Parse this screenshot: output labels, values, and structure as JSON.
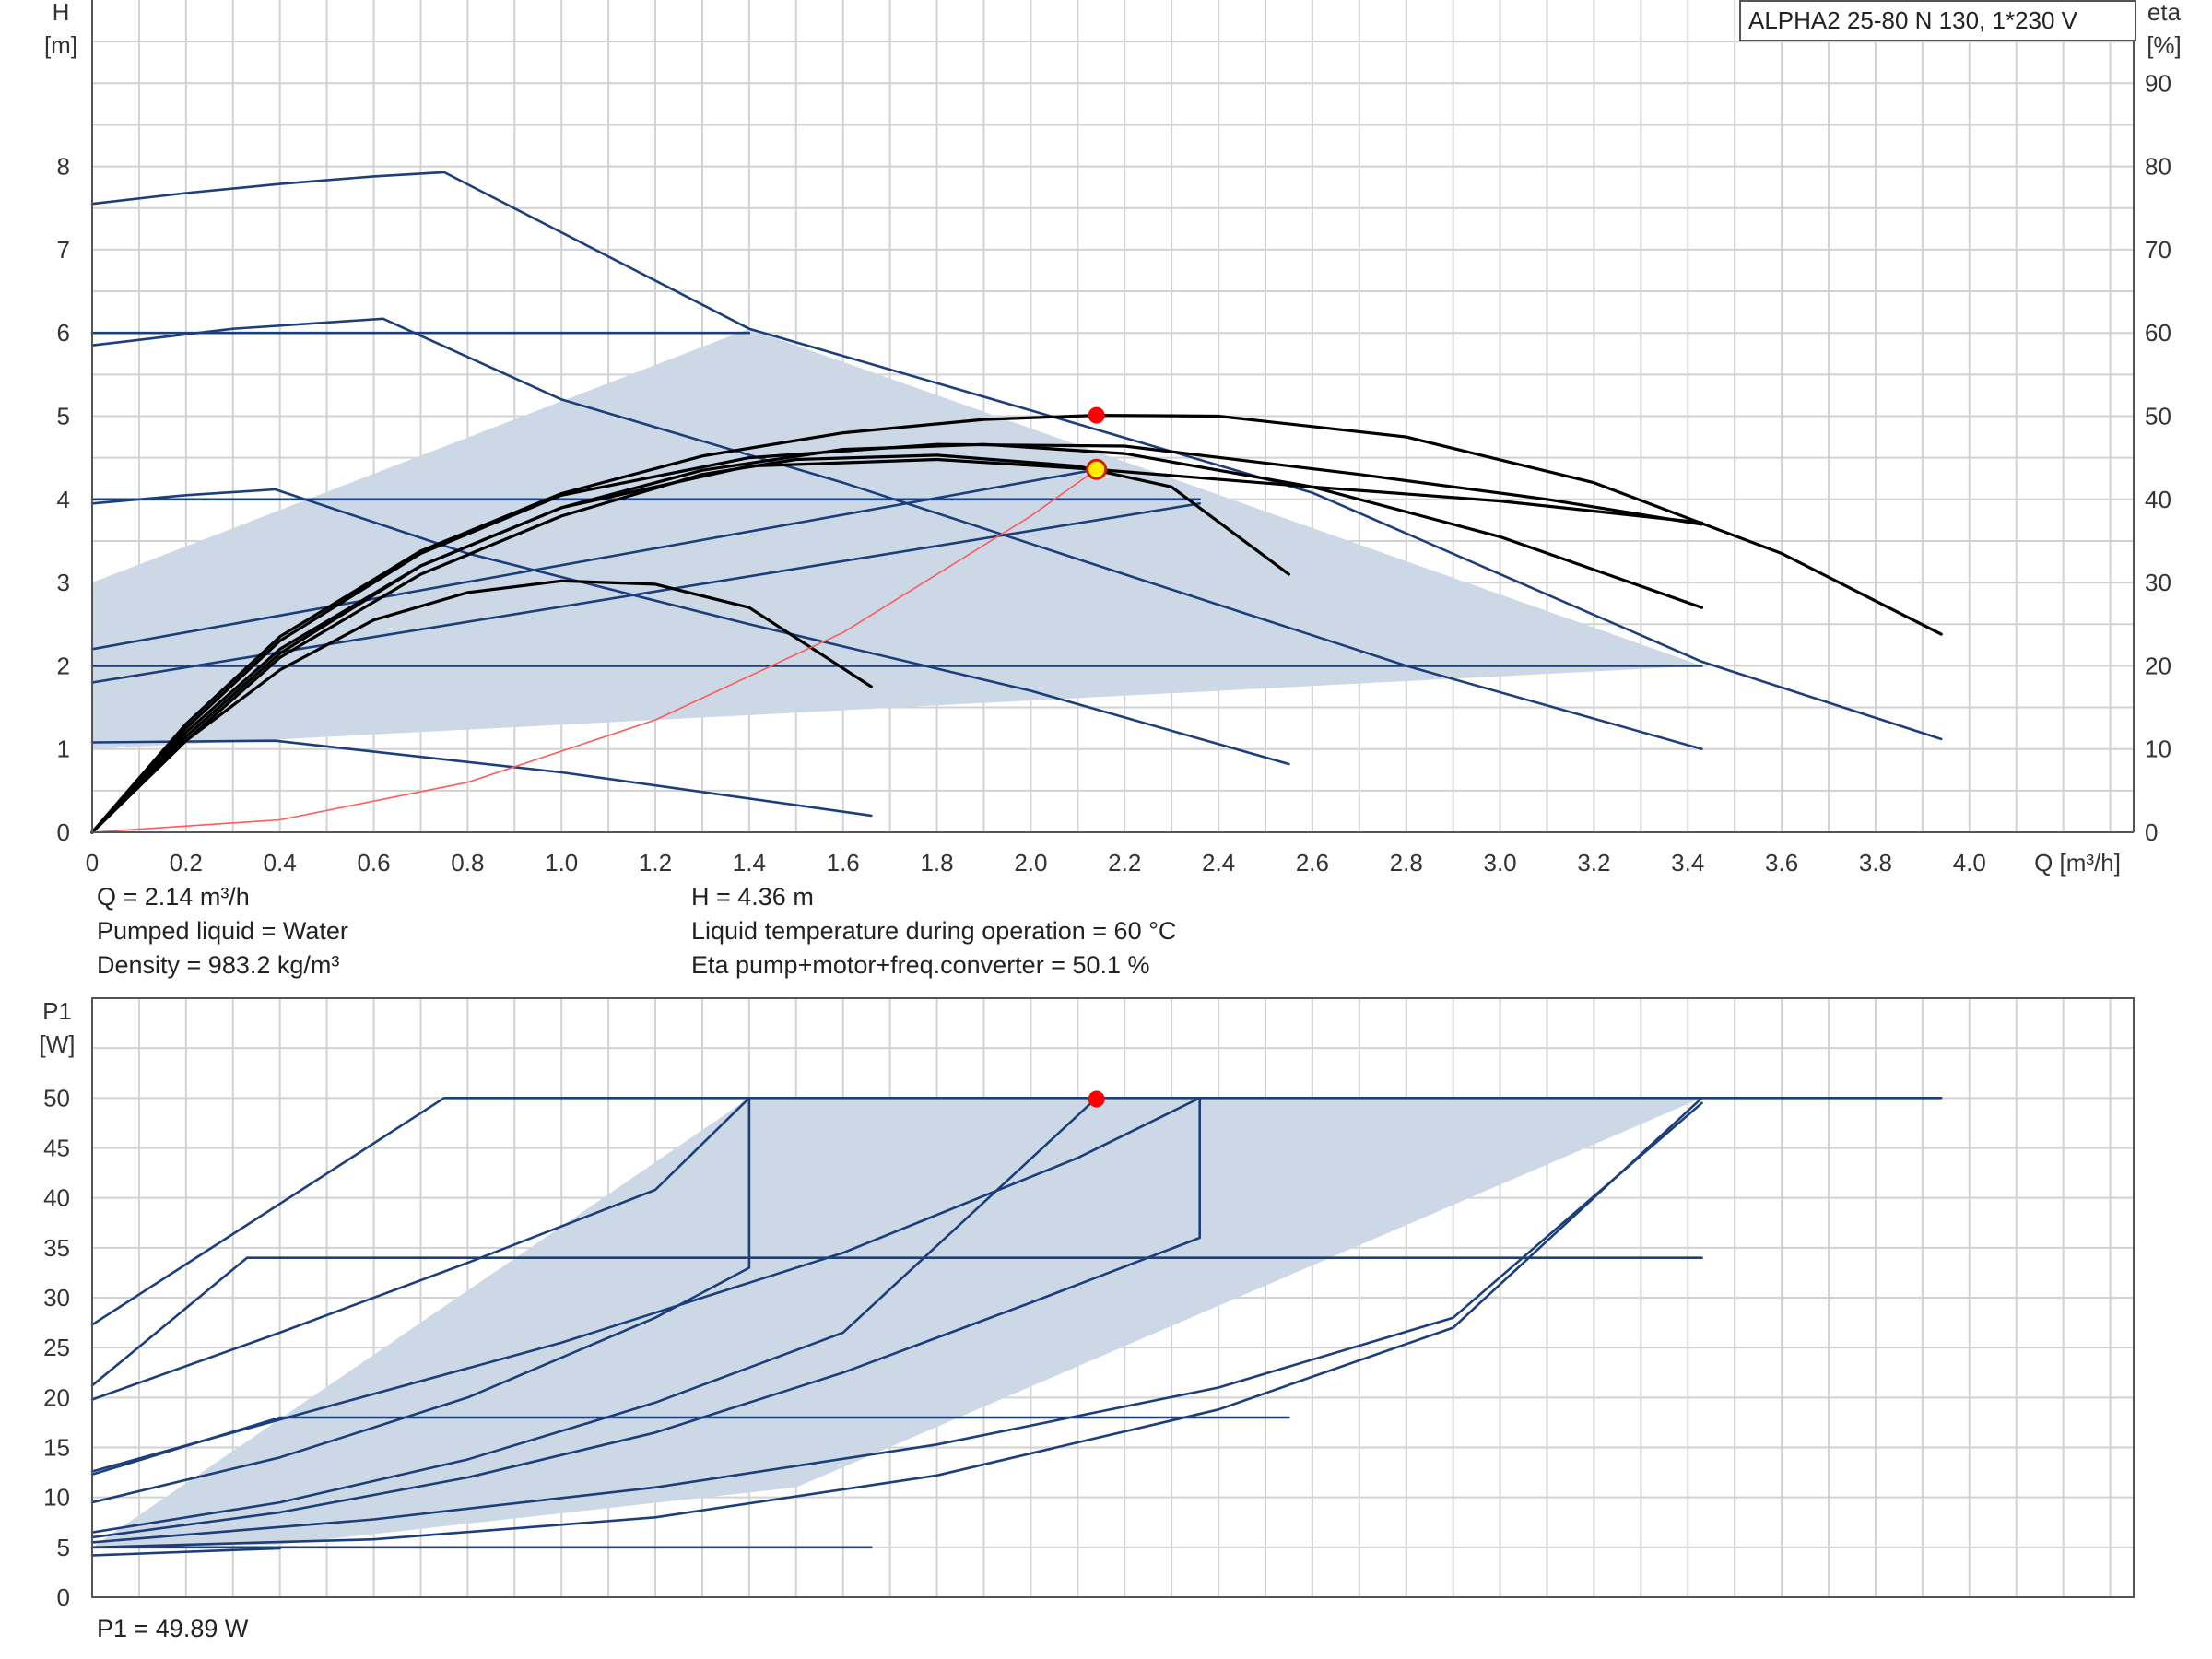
{
  "info": {
    "q": "Q = 2.14 m³/h",
    "liquid": "Pumped liquid = Water",
    "density": "Density = 983.2 kg/m³",
    "h": "H = 4.36 m",
    "temperature": "Liquid temperature during operation = 60 °C",
    "eta": "Eta pump+motor+freq.converter = 50.1 %",
    "p1": "P1 = 49.89 W"
  },
  "colors": {
    "curve": "#1c3f7c",
    "fill": "#ccd8e6",
    "eta": "#000000",
    "system": "#ff5a5a",
    "duty_point": "#ff0000",
    "op_point": "#ffee00",
    "grid": "#d2d2d2"
  },
  "chart_data": [
    {
      "type": "line",
      "legend": "ALPHA2 25-80 N 130, 1*230 V",
      "xlabel": "Q [m³/h]",
      "ylabel": "H\n[m]",
      "y2label": "eta\n[%]",
      "xlim": [
        0,
        4.35
      ],
      "ylim": [
        0,
        10
      ],
      "y2lim": [
        0,
        100
      ],
      "x_ticks": [
        "0",
        "0.2",
        "0.4",
        "0.6",
        "0.8",
        "1.0",
        "1.2",
        "1.4",
        "1.6",
        "1.8",
        "2.0",
        "2.2",
        "2.4",
        "2.6",
        "2.8",
        "3.0",
        "3.2",
        "3.4",
        "3.6",
        "3.8",
        "4.0"
      ],
      "y_ticks": [
        "0",
        "1",
        "2",
        "3",
        "4",
        "5",
        "6",
        "7",
        "8"
      ],
      "y2_ticks": [
        "0",
        "10",
        "20",
        "30",
        "40",
        "50",
        "60",
        "70",
        "80",
        "90"
      ],
      "grid": true,
      "operating_area": [
        [
          0,
          1
        ],
        [
          3.43,
          2
        ],
        [
          1.4,
          6.05
        ],
        [
          0,
          3
        ]
      ],
      "series": [
        {
          "role": "head",
          "values": [
            [
              0,
              7.55
            ],
            [
              0.2,
              7.68
            ],
            [
              0.4,
              7.79
            ],
            [
              0.6,
              7.88
            ],
            [
              0.75,
              7.93
            ],
            [
              1.4,
              6.05
            ],
            [
              2.0,
              5.07
            ],
            [
              2.6,
              4.08
            ],
            [
              3.43,
              2.05
            ],
            [
              3.94,
              1.12
            ]
          ]
        },
        {
          "role": "head",
          "values": [
            [
              0,
              5.85
            ],
            [
              0.3,
              6.05
            ],
            [
              0.62,
              6.17
            ],
            [
              1.0,
              5.2
            ],
            [
              1.6,
              4.2
            ],
            [
              2.2,
              3.1
            ],
            [
              2.8,
              2.0
            ],
            [
              3.43,
              1.0
            ]
          ]
        },
        {
          "role": "head",
          "values": [
            [
              0,
              3.95
            ],
            [
              0.2,
              4.05
            ],
            [
              0.39,
              4.12
            ],
            [
              0.8,
              3.35
            ],
            [
              1.4,
              2.5
            ],
            [
              2.0,
              1.7
            ],
            [
              2.55,
              0.82
            ]
          ]
        },
        {
          "role": "head",
          "values": [
            [
              0,
              1.08
            ],
            [
              0.39,
              1.1
            ],
            [
              1.0,
              0.72
            ],
            [
              1.66,
              0.2
            ]
          ]
        },
        {
          "role": "head",
          "values": [
            [
              0,
              6.0
            ],
            [
              1.4,
              6.0
            ]
          ]
        },
        {
          "role": "head",
          "values": [
            [
              0,
              4.0
            ],
            [
              2.36,
              4.0
            ]
          ]
        },
        {
          "role": "head",
          "values": [
            [
              0,
              2.0
            ],
            [
              3.43,
              2.0
            ]
          ]
        },
        {
          "role": "head",
          "values": [
            [
              0,
              2.2
            ],
            [
              2.14,
              4.36
            ]
          ]
        },
        {
          "role": "head",
          "values": [
            [
              0,
              1.8
            ],
            [
              2.36,
              3.95
            ]
          ]
        },
        {
          "role": "eta",
          "values": [
            [
              0,
              0
            ],
            [
              0.2,
              13
            ],
            [
              0.4,
              23.5
            ],
            [
              0.7,
              33.8
            ],
            [
              1.0,
              40.7
            ],
            [
              1.3,
              45.2
            ],
            [
              1.6,
              48
            ],
            [
              1.9,
              49.6
            ],
            [
              2.14,
              50.1
            ],
            [
              2.4,
              50
            ],
            [
              2.8,
              47.5
            ],
            [
              3.2,
              42
            ],
            [
              3.6,
              33.5
            ],
            [
              3.94,
              23.8
            ]
          ]
        },
        {
          "role": "eta",
          "values": [
            [
              0,
              0
            ],
            [
              0.2,
              12
            ],
            [
              0.4,
              22
            ],
            [
              0.7,
              32
            ],
            [
              1.0,
              39
            ],
            [
              1.3,
              43.5
            ],
            [
              1.6,
              46
            ],
            [
              1.9,
              46.6
            ],
            [
              2.2,
              45.5
            ],
            [
              2.6,
              41.5
            ],
            [
              3.0,
              35.5
            ],
            [
              3.43,
              27
            ]
          ]
        },
        {
          "role": "eta",
          "values": [
            [
              0,
              0
            ],
            [
              0.2,
              11
            ],
            [
              0.4,
              21
            ],
            [
              0.7,
              31
            ],
            [
              1.0,
              38
            ],
            [
              1.3,
              43
            ],
            [
              1.5,
              44.8
            ],
            [
              1.8,
              45.3
            ],
            [
              2.1,
              44
            ],
            [
              2.3,
              41.5
            ],
            [
              2.55,
              31
            ]
          ]
        },
        {
          "role": "eta",
          "values": [
            [
              0,
              0
            ],
            [
              0.2,
              11.5
            ],
            [
              0.4,
              21.5
            ],
            [
              0.7,
              32
            ],
            [
              1.0,
              39
            ],
            [
              1.4,
              44
            ],
            [
              1.8,
              44.8
            ],
            [
              2.14,
              43.6
            ],
            [
              2.6,
              41.5
            ],
            [
              3.0,
              39.8
            ],
            [
              3.43,
              37.2
            ]
          ]
        },
        {
          "role": "eta",
          "values": [
            [
              0,
              0
            ],
            [
              0.2,
              12.5
            ],
            [
              0.4,
              23
            ],
            [
              0.7,
              33.5
            ],
            [
              1.0,
              40.5
            ],
            [
              1.4,
              45
            ],
            [
              1.8,
              46.6
            ],
            [
              2.2,
              46.4
            ],
            [
              2.7,
              43
            ],
            [
              3.1,
              40
            ],
            [
              3.43,
              37
            ]
          ]
        },
        {
          "role": "eta",
          "values": [
            [
              0,
              0
            ],
            [
              0.2,
              11
            ],
            [
              0.4,
              19.5
            ],
            [
              0.6,
              25.5
            ],
            [
              0.8,
              28.8
            ],
            [
              1.0,
              30.2
            ],
            [
              1.2,
              29.8
            ],
            [
              1.4,
              27
            ],
            [
              1.66,
              17.5
            ]
          ]
        },
        {
          "role": "system",
          "values": [
            [
              0,
              0
            ],
            [
              0.4,
              0.15
            ],
            [
              0.8,
              0.6
            ],
            [
              1.2,
              1.35
            ],
            [
              1.6,
              2.4
            ],
            [
              2.0,
              3.8
            ],
            [
              2.14,
              4.36
            ]
          ]
        }
      ],
      "points": [
        {
          "role": "duty_point",
          "x": 2.14,
          "y2": 50.1
        },
        {
          "role": "operating_point",
          "x": 2.14,
          "y": 4.36
        }
      ]
    },
    {
      "type": "line",
      "ylabel": "P1\n[W]",
      "xlim": [
        0,
        4.35
      ],
      "ylim": [
        0,
        60
      ],
      "y_ticks": [
        "0",
        "5",
        "10",
        "15",
        "20",
        "25",
        "30",
        "35",
        "40",
        "45",
        "50"
      ],
      "grid": true,
      "operating_area": [
        [
          0,
          5
        ],
        [
          1.4,
          50
        ],
        [
          3.43,
          50
        ],
        [
          1.5,
          11
        ],
        [
          0.4,
          5.3
        ]
      ],
      "series": [
        {
          "role": "power",
          "values": [
            [
              0,
              27.3
            ],
            [
              0.75,
              50
            ],
            [
              3.94,
              50
            ]
          ]
        },
        {
          "role": "power",
          "values": [
            [
              0,
              19.8
            ],
            [
              0.4,
              26.5
            ],
            [
              0.8,
              33.5
            ],
            [
              1.2,
              40.8
            ],
            [
              1.4,
              50
            ]
          ]
        },
        {
          "role": "power",
          "values": [
            [
              0,
              21.2
            ],
            [
              0.33,
              34
            ],
            [
              3.43,
              34
            ]
          ]
        },
        {
          "role": "power",
          "values": [
            [
              0,
              12.6
            ],
            [
              0.4,
              17.8
            ],
            [
              1.0,
              25.5
            ],
            [
              1.6,
              34.5
            ],
            [
              2.1,
              44
            ],
            [
              2.36,
              50
            ]
          ]
        },
        {
          "role": "power",
          "values": [
            [
              0,
              12.3
            ],
            [
              0.4,
              18
            ],
            [
              2.55,
              18
            ]
          ]
        },
        {
          "role": "power",
          "values": [
            [
              0,
              9.5
            ],
            [
              0.4,
              14
            ],
            [
              0.8,
              20
            ],
            [
              1.2,
              28
            ],
            [
              1.4,
              33
            ],
            [
              1.4,
              50
            ]
          ]
        },
        {
          "role": "power",
          "values": [
            [
              0,
              6.5
            ],
            [
              0.4,
              9.5
            ],
            [
              0.8,
              13.8
            ],
            [
              1.2,
              19.5
            ],
            [
              1.6,
              26.5
            ],
            [
              2.14,
              50
            ]
          ]
        },
        {
          "role": "power",
          "values": [
            [
              0,
              6.0
            ],
            [
              0.4,
              8.5
            ],
            [
              0.8,
              12
            ],
            [
              1.2,
              16.5
            ],
            [
              1.6,
              22.5
            ],
            [
              2.0,
              29.5
            ],
            [
              2.36,
              36
            ],
            [
              2.36,
              50
            ]
          ]
        },
        {
          "role": "power",
          "values": [
            [
              0,
              5.5
            ],
            [
              0.6,
              7.8
            ],
            [
              1.2,
              11
            ],
            [
              1.8,
              15.3
            ],
            [
              2.4,
              21
            ],
            [
              2.9,
              28
            ],
            [
              3.43,
              49.5
            ]
          ]
        },
        {
          "role": "power",
          "values": [
            [
              0,
              5.0
            ],
            [
              0.6,
              5.8
            ],
            [
              1.2,
              8
            ],
            [
              1.8,
              12.2
            ],
            [
              2.4,
              18.8
            ],
            [
              2.9,
              27
            ],
            [
              3.43,
              50
            ]
          ]
        },
        {
          "role": "power",
          "values": [
            [
              0,
              5.0
            ],
            [
              1.66,
              5.0
            ]
          ]
        },
        {
          "role": "power",
          "values": [
            [
              0,
              4.2
            ],
            [
              0.4,
              4.9
            ]
          ]
        }
      ],
      "points": [
        {
          "role": "duty_point",
          "x": 2.14,
          "y": 49.89
        }
      ]
    }
  ]
}
